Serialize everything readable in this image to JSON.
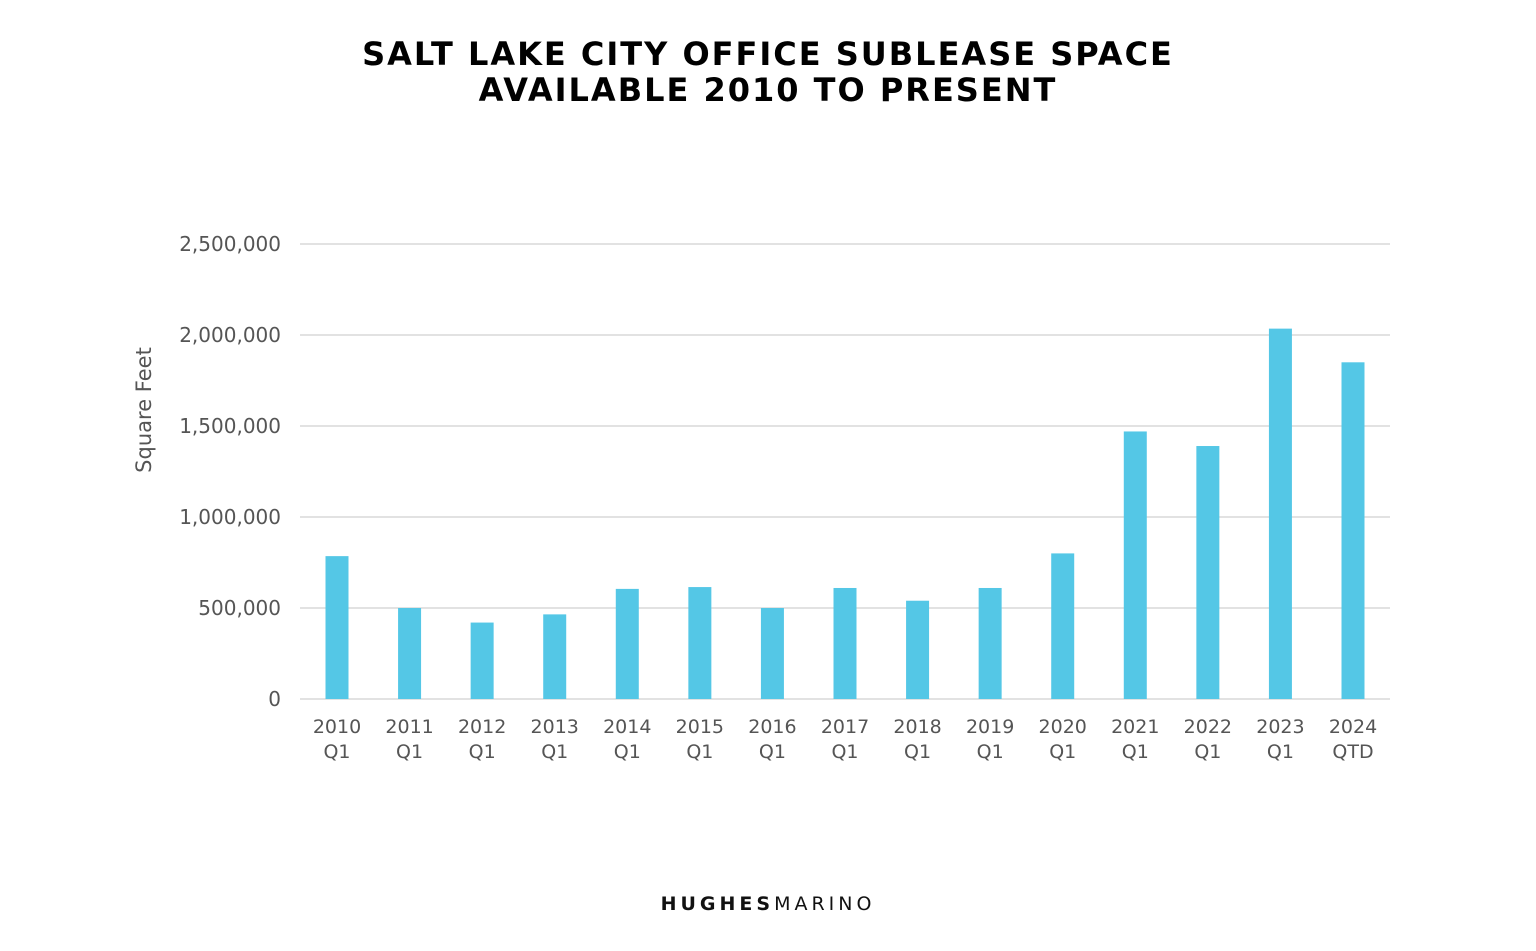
{
  "title": {
    "line1": "SALT LAKE CITY OFFICE SUBLEASE SPACE",
    "line2": "AVAILABLE 2010 TO PRESENT"
  },
  "brand": {
    "bold": "HUGHES",
    "light": "MARINO"
  },
  "colors": {
    "bar": "#54c7e6",
    "grid": "#d9d9d9",
    "axis_text": "#555555"
  },
  "chart_data": {
    "type": "bar",
    "title": "SALT LAKE CITY OFFICE SUBLEASE SPACE AVAILABLE 2010 TO PRESENT",
    "xlabel": "",
    "ylabel": "Square Feet",
    "ylim": [
      0,
      2500000
    ],
    "yticks": [
      0,
      500000,
      1000000,
      1500000,
      2000000,
      2500000
    ],
    "ytick_labels": [
      "0",
      "500,000",
      "1,000,000",
      "1,500,000",
      "2,000,000",
      "2,500,000"
    ],
    "grid": true,
    "legend": false,
    "categories": [
      [
        "2010",
        "Q1"
      ],
      [
        "2011",
        "Q1"
      ],
      [
        "2012",
        "Q1"
      ],
      [
        "2013",
        "Q1"
      ],
      [
        "2014",
        "Q1"
      ],
      [
        "2015",
        "Q1"
      ],
      [
        "2016",
        "Q1"
      ],
      [
        "2017",
        "Q1"
      ],
      [
        "2018",
        "Q1"
      ],
      [
        "2019",
        "Q1"
      ],
      [
        "2020",
        "Q1"
      ],
      [
        "2021",
        "Q1"
      ],
      [
        "2022",
        "Q1"
      ],
      [
        "2023",
        "Q1"
      ],
      [
        "2024",
        "QTD"
      ]
    ],
    "values": [
      785000,
      500000,
      420000,
      465000,
      605000,
      615000,
      500000,
      610000,
      540000,
      610000,
      800000,
      1470000,
      1390000,
      2035000,
      1850000
    ]
  }
}
